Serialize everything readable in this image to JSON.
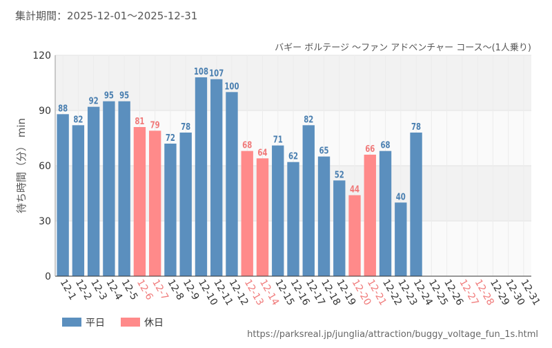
{
  "header": {
    "period": "集計期間：2025-12-01～2025-12-31",
    "subtitle": "バギー ボルテージ ～ファン アドベンチャー コース～(1人乗り)"
  },
  "footer": {
    "url": "https://parksreal.jp/junglia/attraction/buggy_voltage_fun_1s.html"
  },
  "colors": {
    "weekday": "#5b8fbe",
    "holiday": "#ff8a8a",
    "weekday_label": "#4a7fb0",
    "holiday_label": "#f07a7a"
  },
  "chart_data": {
    "type": "bar",
    "title": "バギー ボルテージ ～ファン アドベンチャー コース～(1人乗り)",
    "xlabel": "",
    "ylabel": "待ち時間（分） min",
    "ylim": [
      0,
      120
    ],
    "yticks": [
      0,
      30,
      60,
      90,
      120
    ],
    "grid": true,
    "legend": [
      {
        "key": "weekday",
        "label": "平日"
      },
      {
        "key": "holiday",
        "label": "休日"
      }
    ],
    "categories": [
      "12-1",
      "12-2",
      "12-3",
      "12-4",
      "12-5",
      "12-6",
      "12-7",
      "12-8",
      "12-9",
      "12-10",
      "12-11",
      "12-12",
      "12-13",
      "12-14",
      "12-15",
      "12-16",
      "12-17",
      "12-18",
      "12-19",
      "12-20",
      "12-21",
      "12-22",
      "12-23",
      "12-24",
      "12-25",
      "12-26",
      "12-27",
      "12-28",
      "12-29",
      "12-30",
      "12-31"
    ],
    "values": [
      88,
      82,
      92,
      95,
      95,
      81,
      79,
      72,
      78,
      108,
      107,
      100,
      68,
      64,
      71,
      62,
      82,
      65,
      52,
      44,
      66,
      68,
      40,
      78,
      null,
      null,
      null,
      null,
      null,
      null,
      null
    ],
    "day_type": [
      "weekday",
      "weekday",
      "weekday",
      "weekday",
      "weekday",
      "holiday",
      "holiday",
      "weekday",
      "weekday",
      "weekday",
      "weekday",
      "weekday",
      "holiday",
      "holiday",
      "weekday",
      "weekday",
      "weekday",
      "weekday",
      "weekday",
      "holiday",
      "holiday",
      "weekday",
      "weekday",
      "weekday",
      "weekday",
      "weekday",
      "holiday",
      "holiday",
      "weekday",
      "weekday",
      "weekday"
    ]
  }
}
